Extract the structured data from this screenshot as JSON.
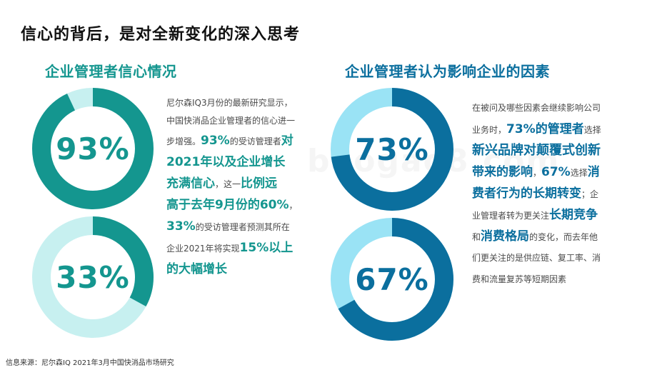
{
  "title": "信心的背后，是对全新变化的深入思考",
  "left_title": "企业管理者信心情况",
  "right_title": "企业管理者认为影响企业的因素",
  "watermark": "baogao8.com",
  "chart_data": [
    {
      "type": "pie",
      "title": "企业管理者信心情况",
      "values": [
        93
      ],
      "label": "93%",
      "color": "#14968f",
      "track_color": "#c7f0f0"
    },
    {
      "type": "pie",
      "title": "",
      "values": [
        33
      ],
      "label": "33%",
      "color": "#14968f",
      "track_color": "#c7f0f0"
    },
    {
      "type": "pie",
      "title": "企业管理者认为影响企业的因素",
      "values": [
        73
      ],
      "label": "73%",
      "color": "#0b6f9e",
      "track_color": "#9ae3f5"
    },
    {
      "type": "pie",
      "title": "",
      "values": [
        67
      ],
      "label": "67%",
      "color": "#0b6f9e",
      "track_color": "#9ae3f5"
    }
  ],
  "left_text": {
    "l1": "尼尔森IQ3月份的最新研究显示，",
    "l2": "中国快消品企业管理者的信心进一",
    "l3a": "步增强。",
    "l3b": "93%",
    "l3c": "的受访管理者",
    "l3d": "对",
    "l4": "2021年以及企业增长",
    "l5a": "充满信心",
    "l5b": "，这一",
    "l5c": "比例远",
    "l6a": "高于去年9月份的60%",
    "l6b": "，",
    "l7a": "33%",
    "l7b": "的受访管理者预测其所在",
    "l8a": "企业2021年将实现",
    "l8b": "15%以上",
    "l9": "的大幅增长"
  },
  "right_text": {
    "l1": "在被问及哪些因素会继续影响公司",
    "l2a": "业务时，",
    "l2b": "73%的管理者",
    "l2c": "选择",
    "l3": "新兴品牌对颠覆式创新",
    "l4a": "带来的影响",
    "l4b": "，",
    "l4c": "67%",
    "l4d": "选择",
    "l4e": "消",
    "l5a": "费者行为的长期转变",
    "l5b": "；企",
    "l6a": "业管理者转为更关注",
    "l6b": "长期竞争",
    "l7a": "和",
    "l7b": "消费格局",
    "l7c": "的变化，而去年他",
    "l8": "们更关注的是供应链、复工率、消",
    "l9": "费和流量复苏等短期因素"
  },
  "source": "信息来源：尼尔森IQ 2021年3月中国快消品市场研究"
}
